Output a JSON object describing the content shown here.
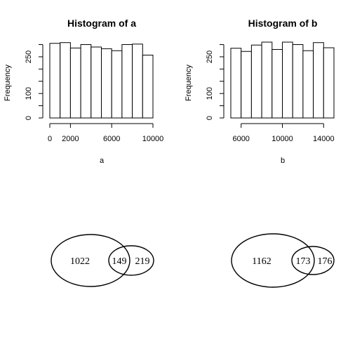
{
  "chart_data": [
    {
      "type": "bar",
      "title": "Histogram of a",
      "xlabel": "a",
      "ylabel": "Frequency",
      "bin_edges": [
        0,
        1000,
        2000,
        3000,
        4000,
        5000,
        6000,
        7000,
        8000,
        9000,
        10000
      ],
      "values": [
        305,
        308,
        286,
        300,
        290,
        283,
        275,
        300,
        302,
        257
      ],
      "xticks": [
        0,
        2000,
        6000,
        10000
      ],
      "xtick_labels": [
        "0",
        "2000",
        "6000",
        "10000"
      ],
      "yticks": [
        0,
        50,
        100,
        150,
        200,
        250,
        300
      ],
      "ytick_labels": [
        "0",
        "",
        "100",
        "",
        "",
        "250",
        ""
      ],
      "xlim": [
        0,
        10000
      ],
      "ylim": [
        0,
        310
      ]
    },
    {
      "type": "bar",
      "title": "Histogram of b",
      "xlabel": "b",
      "ylabel": "Frequency",
      "bin_edges": [
        5000,
        6000,
        7000,
        8000,
        9000,
        10000,
        11000,
        12000,
        13000,
        14000,
        15000
      ],
      "values": [
        285,
        272,
        298,
        310,
        280,
        310,
        300,
        275,
        308,
        287
      ],
      "xticks": [
        6000,
        10000,
        14000
      ],
      "xtick_labels": [
        "6000",
        "10000",
        "14000"
      ],
      "yticks": [
        0,
        50,
        100,
        150,
        200,
        250,
        300
      ],
      "ytick_labels": [
        "0",
        "",
        "100",
        "",
        "",
        "250",
        ""
      ],
      "xlim": [
        5000,
        15000
      ],
      "ylim": [
        0,
        310
      ]
    }
  ],
  "venn": [
    {
      "only_left": "1022",
      "overlap": "149",
      "only_right": "219"
    },
    {
      "only_left": "1162",
      "overlap": "173",
      "only_right": "176"
    }
  ]
}
